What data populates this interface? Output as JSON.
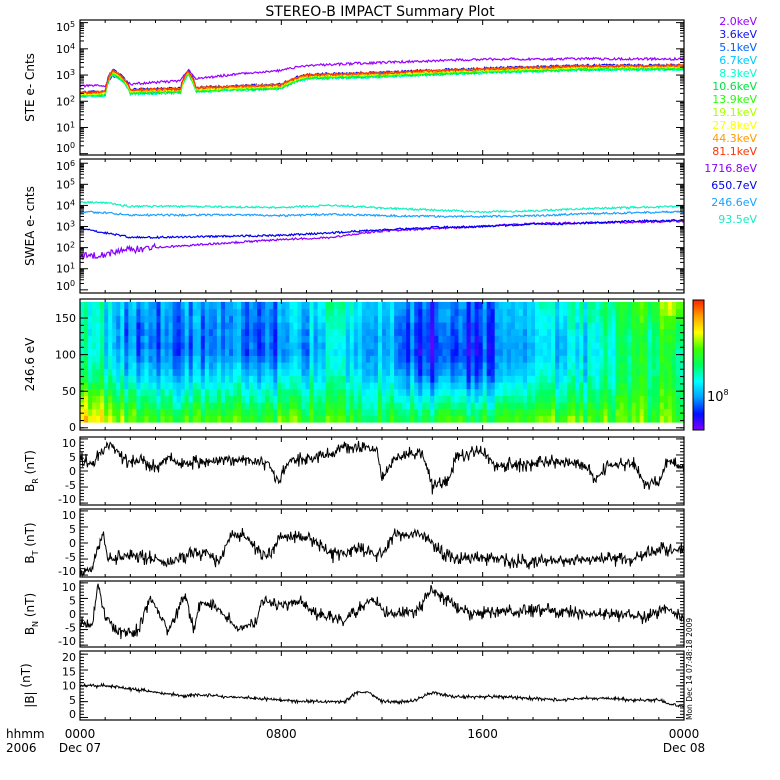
{
  "title": "STEREO-B IMPACT Summary Plot",
  "timestamp_vertical": "Mon Dec 14 07:48:18 2009",
  "x_axis": {
    "corner_label_1": "hhmm",
    "corner_label_2": "2006",
    "range_hours": [
      0,
      24
    ],
    "ticks": [
      {
        "hour": 0,
        "label": "0000",
        "date": "Dec 07"
      },
      {
        "hour": 8,
        "label": "0800",
        "date": ""
      },
      {
        "hour": 16,
        "label": "1600",
        "date": ""
      },
      {
        "hour": 24,
        "label": "0000",
        "date": "Dec 08"
      }
    ]
  },
  "chart_data": [
    {
      "type": "line",
      "ylabel": "STE e- Cnts",
      "yscale": "log",
      "ylim": [
        1,
        100000
      ],
      "ytick_exponents": [
        "0",
        "1",
        "2",
        "3",
        "4",
        "5"
      ],
      "x": [
        0,
        1,
        1.3,
        2,
        4,
        4.3,
        4.6,
        8,
        9,
        12,
        16,
        20,
        24
      ],
      "series": [
        {
          "name": "2.0keV",
          "color": "#9900ff",
          "values": [
            380,
            400,
            900,
            450,
            600,
            1600,
            700,
            1500,
            2300,
            3000,
            4000,
            4200,
            4100
          ]
        },
        {
          "name": "3.6keV",
          "color": "#1010ee",
          "values": [
            220,
            240,
            1600,
            280,
            320,
            1500,
            340,
            440,
            1050,
            1260,
            1790,
            2310,
            2420
          ]
        },
        {
          "name": "5.1keV",
          "color": "#0060ff",
          "values": [
            200,
            220,
            1400,
            260,
            285,
            1300,
            300,
            400,
            950,
            1140,
            1600,
            2100,
            2200
          ]
        },
        {
          "name": "6.7keV",
          "color": "#00c8ff",
          "values": [
            170,
            185,
            1200,
            215,
            240,
            1100,
            255,
            335,
            800,
            960,
            1360,
            1760,
            1840
          ]
        },
        {
          "name": "8.3keV",
          "color": "#00ffcc",
          "values": [
            150,
            160,
            1050,
            190,
            210,
            980,
            225,
            295,
            700,
            840,
            1190,
            1540,
            1610
          ]
        },
        {
          "name": "10.6keV",
          "color": "#00e040",
          "values": [
            160,
            170,
            1100,
            200,
            225,
            1050,
            240,
            315,
            750,
            900,
            1280,
            1650,
            1730
          ]
        },
        {
          "name": "13.9keV",
          "color": "#22ff00",
          "values": [
            170,
            185,
            1200,
            215,
            240,
            1100,
            255,
            335,
            800,
            960,
            1360,
            1760,
            1840
          ]
        },
        {
          "name": "19.1keV",
          "color": "#aaff00",
          "values": [
            185,
            200,
            1300,
            240,
            265,
            1230,
            280,
            370,
            880,
            1060,
            1500,
            1940,
            2020
          ]
        },
        {
          "name": "27.8keV",
          "color": "#ffff00",
          "values": [
            195,
            210,
            1380,
            250,
            275,
            1290,
            295,
            385,
            920,
            1100,
            1560,
            2020,
            2120
          ]
        },
        {
          "name": "44.3keV",
          "color": "#ff9900",
          "values": [
            205,
            225,
            1450,
            260,
            290,
            1360,
            310,
            410,
            970,
            1160,
            1650,
            2130,
            2230
          ]
        },
        {
          "name": "81.1keV",
          "color": "#ff3300",
          "values": [
            210,
            230,
            1500,
            270,
            300,
            1400,
            320,
            420,
            1000,
            1200,
            1700,
            2200,
            2300
          ]
        }
      ]
    },
    {
      "type": "line",
      "ylabel": "SWEA e- cnts",
      "yscale": "log",
      "ylim": [
        1,
        1000000
      ],
      "ytick_exponents": [
        "0",
        "1",
        "2",
        "3",
        "4",
        "5",
        "6"
      ],
      "x": [
        0,
        1,
        2,
        4,
        6,
        8,
        10,
        12,
        14,
        16,
        18,
        20,
        22,
        24
      ],
      "series": [
        {
          "name": "1716.8eV",
          "color": "#8800ff",
          "values": [
            40,
            50,
            80,
            120,
            170,
            240,
            300,
            600,
            800,
            1000,
            1400,
            1500,
            1600,
            1800
          ]
        },
        {
          "name": "650.7eV",
          "color": "#0000ee",
          "values": [
            800,
            500,
            300,
            320,
            350,
            380,
            500,
            700,
            900,
            1000,
            1300,
            1400,
            1800,
            2000
          ]
        },
        {
          "name": "246.6eV",
          "color": "#1aa0ff",
          "values": [
            5000,
            4500,
            3500,
            3500,
            3600,
            3300,
            3800,
            3300,
            3000,
            3000,
            3200,
            4000,
            4500,
            5000
          ]
        },
        {
          "name": "93.5eV",
          "color": "#10f0c0",
          "values": [
            14000,
            13000,
            9000,
            9000,
            8500,
            8000,
            10000,
            7500,
            6000,
            5000,
            5500,
            7000,
            8000,
            9000
          ]
        }
      ]
    },
    {
      "type": "heatmap",
      "ylabel": "246.6 eV",
      "ylim": [
        0,
        180
      ],
      "yticks": [
        "0",
        "50",
        "100",
        "150"
      ],
      "colorbar_label_base": "10",
      "colorbar_label_exp": "8",
      "colormap": [
        "#8000ff",
        "#0010ff",
        "#00a0ff",
        "#00ffff",
        "#00ff60",
        "#40ff00",
        "#ffff00",
        "#ffa000",
        "#ff2000"
      ],
      "x": [
        0,
        2,
        4,
        6,
        8,
        10,
        12,
        14,
        16,
        18,
        20,
        22,
        24
      ],
      "pitch_angle_bins": [
        165,
        135,
        105,
        75,
        45,
        15
      ],
      "level": [
        [
          0.5,
          0.5,
          0.5,
          0.55,
          0.7,
          0.85
        ],
        [
          0.25,
          0.2,
          0.22,
          0.3,
          0.45,
          0.6
        ],
        [
          0.25,
          0.22,
          0.2,
          0.28,
          0.4,
          0.58
        ],
        [
          0.22,
          0.2,
          0.2,
          0.3,
          0.42,
          0.58
        ],
        [
          0.25,
          0.22,
          0.2,
          0.3,
          0.45,
          0.6
        ],
        [
          0.45,
          0.4,
          0.35,
          0.4,
          0.5,
          0.6
        ],
        [
          0.35,
          0.3,
          0.3,
          0.35,
          0.45,
          0.55
        ],
        [
          0.18,
          0.15,
          0.12,
          0.18,
          0.35,
          0.55
        ],
        [
          0.2,
          0.18,
          0.15,
          0.2,
          0.35,
          0.55
        ],
        [
          0.35,
          0.3,
          0.28,
          0.35,
          0.45,
          0.6
        ],
        [
          0.4,
          0.35,
          0.3,
          0.35,
          0.45,
          0.6
        ],
        [
          0.55,
          0.5,
          0.5,
          0.5,
          0.55,
          0.6
        ],
        [
          0.7,
          0.55,
          0.5,
          0.5,
          0.55,
          0.6
        ]
      ]
    },
    {
      "type": "line",
      "ylabel_main": "B",
      "ylabel_sub": "R",
      "ylabel_unit": " (nT)",
      "ylim": [
        -10,
        10
      ],
      "yticks": [
        "-10",
        "-5",
        "0",
        "5",
        "10"
      ],
      "x": [
        0,
        0.5,
        1,
        1.3,
        1.8,
        2.5,
        3,
        3.5,
        4,
        5,
        6,
        6.8,
        7.5,
        7.9,
        8.3,
        9,
        10,
        10.5,
        11,
        11.8,
        12,
        12.5,
        13,
        13.6,
        14,
        14.6,
        15,
        16,
        16.5,
        17,
        18,
        19,
        20,
        20.5,
        21,
        22,
        22.4,
        23,
        23.3,
        24
      ],
      "values": [
        4,
        2,
        8,
        8,
        3,
        3,
        1,
        4,
        2,
        3,
        4,
        3,
        2,
        -3,
        3,
        4,
        5,
        8,
        7,
        7,
        -3,
        4,
        5,
        6,
        -5,
        -3,
        5,
        6,
        2,
        2,
        2,
        3,
        2,
        -3,
        2,
        2,
        -4,
        -4,
        3,
        1
      ]
    },
    {
      "type": "line",
      "ylabel_main": "B",
      "ylabel_sub": "T",
      "ylabel_unit": " (nT)",
      "ylim": [
        -10,
        10
      ],
      "yticks": [
        "-10",
        "-5",
        "0",
        "5",
        "10"
      ],
      "x": [
        0,
        0.5,
        0.9,
        1.1,
        2,
        3,
        3.5,
        4,
        5,
        5.5,
        6,
        6.5,
        7,
        7.5,
        8,
        8.5,
        9.3,
        10,
        11,
        12,
        12.5,
        13,
        13.6,
        14,
        14.5,
        16,
        18,
        20,
        22,
        23,
        24
      ],
      "values": [
        -9,
        -8,
        3,
        -5,
        -4,
        -5,
        -7,
        -4,
        -3,
        -6,
        2,
        3,
        -2,
        -4,
        2,
        2,
        1,
        -4,
        -2,
        -4,
        3,
        2,
        3,
        0,
        -4,
        -5,
        -6,
        -5,
        -5,
        -2,
        -2
      ]
    },
    {
      "type": "line",
      "ylabel_main": "B",
      "ylabel_sub": "N",
      "ylabel_unit": " (nT)",
      "ylim": [
        -10,
        10
      ],
      "yticks": [
        "-10",
        "-5",
        "0",
        "5",
        "10"
      ],
      "x": [
        0,
        0.5,
        0.7,
        1,
        1.5,
        2.3,
        2.8,
        3.5,
        4.2,
        4.5,
        4.8,
        5.5,
        6.3,
        7,
        7.2,
        8,
        8.8,
        9.3,
        10.5,
        11.6,
        12.3,
        13,
        13.5,
        14,
        14.9,
        15.5,
        17,
        19,
        21,
        22.5,
        23.3,
        24
      ],
      "values": [
        -3,
        -4,
        10,
        0,
        -6,
        -5,
        5,
        -5,
        6,
        -5,
        4,
        2,
        -5,
        -3,
        4,
        3,
        4,
        0,
        -2,
        5,
        0,
        0,
        2,
        8,
        2,
        0,
        1,
        1,
        0,
        -1,
        2,
        -2
      ]
    },
    {
      "type": "line",
      "ylabel_main": "|B|",
      "ylabel_sub": "",
      "ylabel_unit": " (nT)",
      "ylim": [
        0,
        20
      ],
      "yticks": [
        "0",
        "5",
        "10",
        "15",
        "20"
      ],
      "x": [
        0,
        1,
        2,
        3,
        4,
        5,
        6,
        7,
        8,
        9,
        10,
        10.5,
        11,
        11.5,
        12,
        13,
        13.5,
        14,
        15,
        16,
        17,
        18,
        19,
        20,
        21,
        22,
        23,
        23.5,
        24
      ],
      "values": [
        10,
        10,
        9,
        8,
        7,
        7,
        6.5,
        6,
        5.5,
        5,
        5,
        5,
        8,
        8,
        5,
        5,
        6,
        8,
        6.5,
        6.5,
        6.5,
        6,
        5.5,
        6,
        6,
        5.5,
        5.5,
        4,
        3.5
      ]
    }
  ]
}
